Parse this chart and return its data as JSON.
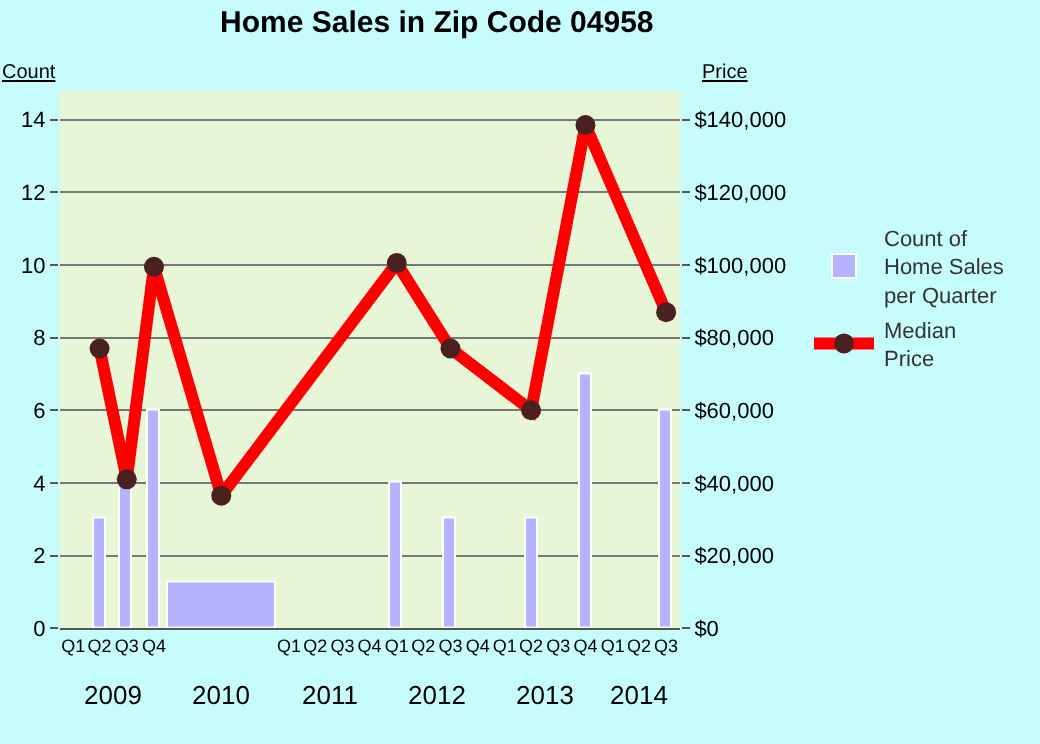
{
  "chart_data": {
    "type": "bar",
    "title": "Home Sales in Zip Code 04958",
    "ylabel": "Count",
    "y2label": "Price",
    "xlim": [
      "2009-01-01",
      "2014-10-01"
    ],
    "xticks": [
      {
        "value": "2009-02-15",
        "label": "Q1"
      },
      {
        "value": "2009-05-15",
        "label": "Q2"
      },
      {
        "value": "2009-08-15",
        "label": "Q3"
      },
      {
        "value": "2009-11-15",
        "label": "Q4"
      },
      {
        "value": "2011-02-15",
        "label": "Q1"
      },
      {
        "value": "2011-05-15",
        "label": "Q2"
      },
      {
        "value": "2011-08-15",
        "label": "Q3"
      },
      {
        "value": "2011-11-15",
        "label": "Q4"
      },
      {
        "value": "2012-02-15",
        "label": "Q1"
      },
      {
        "value": "2012-05-15",
        "label": "Q2"
      },
      {
        "value": "2012-08-15",
        "label": "Q3"
      },
      {
        "value": "2012-11-15",
        "label": "Q4"
      },
      {
        "value": "2013-02-15",
        "label": "Q1"
      },
      {
        "value": "2013-05-15",
        "label": "Q2"
      },
      {
        "value": "2013-08-15",
        "label": "Q3"
      },
      {
        "value": "2013-11-15",
        "label": "Q4"
      },
      {
        "value": "2014-02-15",
        "label": "Q1"
      },
      {
        "value": "2014-05-15",
        "label": "Q2"
      },
      {
        "value": "2014-08-15",
        "label": "Q3"
      }
    ],
    "x2lim": [
      "2009-01-01",
      "2014-10-01"
    ],
    "x2ticks": [
      {
        "value": "2009-07-01",
        "label": "2009"
      },
      {
        "value": "2010-07-01",
        "label": "2010"
      },
      {
        "value": "2011-07-01",
        "label": "2011"
      },
      {
        "value": "2012-07-01",
        "label": "2012"
      },
      {
        "value": "2013-07-01",
        "label": "2013"
      },
      {
        "value": "2014-05-15",
        "label": "2014"
      }
    ],
    "ylim": [
      0,
      14.8
    ],
    "yticks": [
      0,
      2,
      4,
      6,
      8,
      10,
      12,
      14
    ],
    "y2lim": [
      0,
      148000
    ],
    "y2ticks": [
      {
        "value": 0,
        "label": "$0"
      },
      {
        "value": 20000,
        "label": "$20,000"
      },
      {
        "value": 40000,
        "label": "$40,000"
      },
      {
        "value": 60000,
        "label": "$60,000"
      },
      {
        "value": 80000,
        "label": "$80,000"
      },
      {
        "value": 100000,
        "label": "$100,000"
      },
      {
        "value": 120000,
        "label": "$120,000"
      },
      {
        "value": 140000,
        "label": "$140,000"
      }
    ],
    "grid": "y",
    "legend": "right",
    "series": [
      {
        "name": "Count of Home Sales per Quarter",
        "color": "#b3b3ff",
        "x": [
          "2009-05-15",
          "2009-08-15",
          "2009-11-15",
          "2010-07-01",
          "2012-02-15",
          "2012-08-15",
          "2013-05-15",
          "2013-11-15",
          "2014-08-15"
        ],
        "values": [
          3,
          4,
          6,
          1.25,
          4,
          3,
          3,
          7,
          6
        ]
      },
      {
        "name": "Median Price",
        "type": "line",
        "axis": "y2",
        "color": "#ff0000",
        "marker": "circle",
        "line_style": "solid",
        "x": [
          "2009-05-15",
          "2009-08-15",
          "2009-11-15",
          "2010-07-01",
          "2012-02-15",
          "2012-08-15",
          "2013-05-15",
          "2013-11-15",
          "2014-08-15"
        ],
        "values": [
          77000,
          41000,
          99500,
          36500,
          100500,
          77000,
          60000,
          138500,
          87000
        ]
      }
    ]
  }
}
